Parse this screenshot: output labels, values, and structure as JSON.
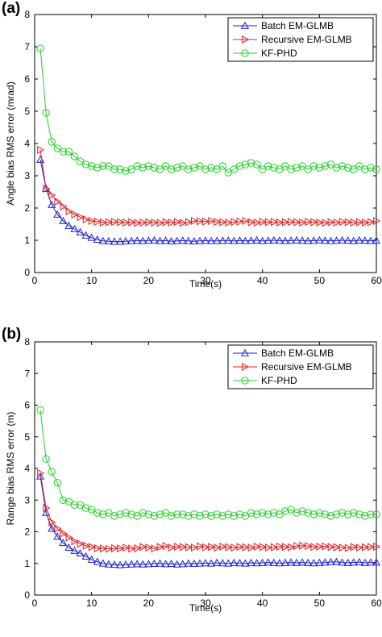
{
  "chart_data": [
    {
      "panel": "(a)",
      "type": "line",
      "xlabel": "Time(s)",
      "ylabel": "Angle bias RMS error (mrad)",
      "xlim": [
        0,
        60
      ],
      "ylim": [
        0,
        8
      ],
      "xticks": [
        0,
        10,
        20,
        30,
        40,
        50,
        60
      ],
      "yticks": [
        0,
        1,
        2,
        3,
        4,
        5,
        6,
        7,
        8
      ],
      "grid": false,
      "legend_position": "top-right",
      "x": [
        1,
        2,
        3,
        4,
        5,
        6,
        7,
        8,
        9,
        10,
        11,
        12,
        13,
        14,
        15,
        16,
        17,
        18,
        19,
        20,
        21,
        22,
        23,
        24,
        25,
        26,
        27,
        28,
        29,
        30,
        31,
        32,
        33,
        34,
        35,
        36,
        37,
        38,
        39,
        40,
        41,
        42,
        43,
        44,
        45,
        46,
        47,
        48,
        49,
        50,
        51,
        52,
        53,
        54,
        55,
        56,
        57,
        58,
        59,
        60
      ],
      "series": [
        {
          "name": "Batch EM-GLMB",
          "color": "#1f1fd6",
          "marker": "triangle-up",
          "values": [
            3.5,
            2.6,
            2.1,
            1.8,
            1.6,
            1.45,
            1.35,
            1.25,
            1.15,
            1.08,
            1.02,
            0.98,
            0.97,
            0.96,
            0.96,
            0.97,
            0.98,
            0.99,
            0.98,
            0.99,
            1.0,
            0.98,
            0.99,
            0.97,
            0.98,
            0.99,
            0.98,
            0.97,
            0.98,
            0.99,
            0.98,
            0.98,
            0.99,
            0.99,
            0.98,
            0.99,
            0.98,
            0.99,
            1.0,
            0.98,
            0.99,
            1.0,
            0.99,
            0.98,
            0.99,
            1.0,
            0.99,
            0.98,
            0.99,
            1.0,
            0.99,
            0.98,
            0.99,
            1.0,
            0.99,
            0.98,
            1.0,
            0.99,
            0.98,
            0.99
          ]
        },
        {
          "name": "Recursive EM-GLMB",
          "color": "#e02020",
          "marker": "triangle-right",
          "values": [
            3.8,
            2.6,
            2.4,
            2.2,
            2.05,
            1.9,
            1.8,
            1.72,
            1.65,
            1.6,
            1.58,
            1.55,
            1.56,
            1.57,
            1.56,
            1.55,
            1.56,
            1.54,
            1.55,
            1.56,
            1.55,
            1.54,
            1.56,
            1.55,
            1.57,
            1.54,
            1.56,
            1.6,
            1.59,
            1.58,
            1.6,
            1.57,
            1.56,
            1.55,
            1.57,
            1.58,
            1.6,
            1.56,
            1.55,
            1.57,
            1.56,
            1.57,
            1.55,
            1.56,
            1.57,
            1.56,
            1.55,
            1.57,
            1.56,
            1.55,
            1.54,
            1.56,
            1.55,
            1.57,
            1.56,
            1.55,
            1.56,
            1.55,
            1.56,
            1.6
          ]
        },
        {
          "name": "KF-PHD",
          "color": "#21d121",
          "marker": "circle",
          "values": [
            6.95,
            4.95,
            4.05,
            3.85,
            3.75,
            3.75,
            3.6,
            3.45,
            3.35,
            3.3,
            3.25,
            3.3,
            3.3,
            3.2,
            3.2,
            3.15,
            3.2,
            3.3,
            3.25,
            3.3,
            3.25,
            3.2,
            3.3,
            3.2,
            3.25,
            3.3,
            3.2,
            3.25,
            3.3,
            3.2,
            3.25,
            3.2,
            3.3,
            3.1,
            3.2,
            3.3,
            3.35,
            3.4,
            3.35,
            3.2,
            3.3,
            3.25,
            3.2,
            3.3,
            3.2,
            3.25,
            3.3,
            3.2,
            3.3,
            3.25,
            3.3,
            3.35,
            3.25,
            3.3,
            3.25,
            3.2,
            3.3,
            3.2,
            3.25,
            3.2
          ]
        }
      ]
    },
    {
      "panel": "(b)",
      "type": "line",
      "xlabel": "Time(s)",
      "ylabel": "Range bias RMS error (m)",
      "xlim": [
        0,
        60
      ],
      "ylim": [
        0,
        8
      ],
      "xticks": [
        0,
        10,
        20,
        30,
        40,
        50,
        60
      ],
      "yticks": [
        0,
        1,
        2,
        3,
        4,
        5,
        6,
        7,
        8
      ],
      "grid": false,
      "legend_position": "top-right",
      "x": [
        1,
        2,
        3,
        4,
        5,
        6,
        7,
        8,
        9,
        10,
        11,
        12,
        13,
        14,
        15,
        16,
        17,
        18,
        19,
        20,
        21,
        22,
        23,
        24,
        25,
        26,
        27,
        28,
        29,
        30,
        31,
        32,
        33,
        34,
        35,
        36,
        37,
        38,
        39,
        40,
        41,
        42,
        43,
        44,
        45,
        46,
        47,
        48,
        49,
        50,
        51,
        52,
        53,
        54,
        55,
        56,
        57,
        58,
        59,
        60
      ],
      "series": [
        {
          "name": "Batch EM-GLMB",
          "color": "#1f1fd6",
          "marker": "triangle-up",
          "values": [
            3.75,
            2.6,
            2.1,
            1.85,
            1.65,
            1.5,
            1.4,
            1.32,
            1.22,
            1.12,
            1.05,
            1.0,
            0.97,
            0.96,
            0.95,
            0.96,
            0.97,
            0.98,
            0.97,
            0.98,
            0.99,
            1.0,
            0.98,
            0.99,
            0.97,
            0.98,
            1.0,
            0.99,
            1.0,
            1.01,
            1.0,
            1.02,
            1.01,
            1.0,
            1.02,
            1.01,
            1.0,
            1.02,
            1.01,
            1.02,
            1.03,
            1.02,
            1.01,
            1.02,
            1.03,
            1.02,
            1.03,
            1.02,
            1.01,
            1.02,
            1.03,
            1.04,
            1.05,
            1.03,
            1.02,
            1.03,
            1.04,
            1.02,
            1.03,
            1.03
          ]
        },
        {
          "name": "Recursive EM-GLMB",
          "color": "#e02020",
          "marker": "triangle-right",
          "values": [
            3.85,
            2.75,
            2.3,
            2.1,
            1.95,
            1.82,
            1.7,
            1.62,
            1.56,
            1.52,
            1.48,
            1.47,
            1.46,
            1.48,
            1.47,
            1.5,
            1.47,
            1.48,
            1.52,
            1.5,
            1.47,
            1.52,
            1.55,
            1.5,
            1.53,
            1.52,
            1.51,
            1.5,
            1.54,
            1.51,
            1.52,
            1.5,
            1.53,
            1.51,
            1.5,
            1.52,
            1.51,
            1.5,
            1.53,
            1.52,
            1.5,
            1.51,
            1.53,
            1.52,
            1.51,
            1.55,
            1.56,
            1.55,
            1.52,
            1.53,
            1.54,
            1.52,
            1.51,
            1.5,
            1.49,
            1.52,
            1.5,
            1.51,
            1.52,
            1.53
          ]
        },
        {
          "name": "KF-PHD",
          "color": "#21d121",
          "marker": "circle",
          "values": [
            5.85,
            4.3,
            3.9,
            3.55,
            3.0,
            2.95,
            2.85,
            2.85,
            2.75,
            2.7,
            2.6,
            2.55,
            2.6,
            2.5,
            2.55,
            2.6,
            2.55,
            2.5,
            2.6,
            2.55,
            2.5,
            2.55,
            2.6,
            2.5,
            2.55,
            2.55,
            2.5,
            2.55,
            2.5,
            2.55,
            2.5,
            2.55,
            2.5,
            2.55,
            2.5,
            2.55,
            2.5,
            2.6,
            2.55,
            2.6,
            2.55,
            2.6,
            2.55,
            2.65,
            2.7,
            2.6,
            2.65,
            2.6,
            2.55,
            2.6,
            2.55,
            2.5,
            2.55,
            2.6,
            2.55,
            2.6,
            2.55,
            2.5,
            2.55,
            2.55
          ]
        }
      ]
    }
  ]
}
